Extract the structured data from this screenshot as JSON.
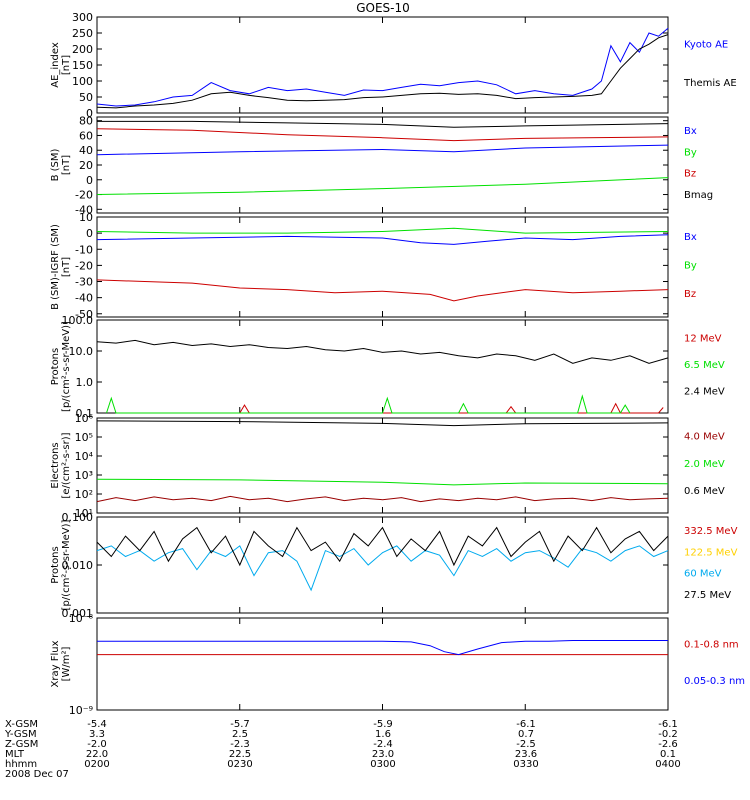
{
  "title": "GOES-10",
  "date_label": "2008 Dec 07",
  "orbit_table": {
    "row_labels": [
      "X-GSM",
      "Y-GSM",
      "Z-GSM",
      "MLT",
      "hhmm"
    ],
    "columns": [
      [
        "-5.4",
        "3.3",
        "-2.0",
        "22.0",
        "0200"
      ],
      [
        "-5.7",
        "2.5",
        "-2.3",
        "22.5",
        "0230"
      ],
      [
        "-5.9",
        "1.6",
        "-2.4",
        "23.0",
        "0300"
      ],
      [
        "-6.1",
        "0.7",
        "-2.5",
        "23.6",
        "0330"
      ],
      [
        "-6.1",
        "-0.2",
        "-2.6",
        "0.1",
        "0400"
      ]
    ]
  },
  "colors": {
    "black": "#000000",
    "blue": "#0000ff",
    "green": "#00e000",
    "red": "#cc0000",
    "darkred": "#990000",
    "yellow": "#ffd000",
    "cyan": "#00aaee"
  },
  "chart_data": [
    {
      "type": "line",
      "ylabel_lines": [
        "AE_index",
        "[nT]"
      ],
      "ylim": [
        0,
        300
      ],
      "yscale": "linear",
      "yticks": [
        0,
        50,
        100,
        150,
        200,
        250,
        300
      ],
      "xlim": [
        0,
        120
      ],
      "xtick_labels": [
        "0200",
        "0230",
        "0300",
        "0330",
        "0400"
      ],
      "series": [
        {
          "name": "Kyoto AE",
          "color": "#0000ff",
          "x": [
            0,
            4,
            8,
            12,
            16,
            20,
            24,
            28,
            32,
            36,
            40,
            44,
            48,
            52,
            56,
            60,
            64,
            68,
            72,
            76,
            80,
            84,
            88,
            92,
            96,
            100,
            104,
            106,
            108,
            110,
            112,
            114,
            116,
            118,
            120
          ],
          "y": [
            28,
            22,
            25,
            35,
            50,
            55,
            95,
            70,
            60,
            80,
            70,
            75,
            65,
            55,
            72,
            70,
            80,
            90,
            85,
            95,
            100,
            88,
            60,
            70,
            60,
            55,
            75,
            100,
            210,
            160,
            220,
            190,
            250,
            240,
            265
          ]
        },
        {
          "name": "Themis AE",
          "color": "#000000",
          "x": [
            0,
            4,
            8,
            12,
            16,
            20,
            24,
            28,
            32,
            36,
            40,
            44,
            48,
            52,
            56,
            60,
            64,
            68,
            72,
            76,
            80,
            84,
            88,
            92,
            96,
            100,
            104,
            106,
            108,
            110,
            112,
            114,
            116,
            118,
            120
          ],
          "y": [
            18,
            16,
            22,
            25,
            30,
            40,
            60,
            65,
            55,
            48,
            40,
            38,
            40,
            42,
            48,
            50,
            55,
            60,
            62,
            58,
            60,
            55,
            45,
            48,
            50,
            52,
            55,
            60,
            100,
            140,
            170,
            200,
            215,
            235,
            245
          ]
        }
      ]
    },
    {
      "type": "line",
      "ylabel_lines": [
        "B (SM)",
        "[nT]"
      ],
      "ylim": [
        -45,
        85
      ],
      "yscale": "linear",
      "yticks": [
        -40,
        -20,
        0,
        20,
        40,
        60,
        80
      ],
      "xlim": [
        0,
        120
      ],
      "series": [
        {
          "name": "Bx",
          "color": "#0000ff",
          "x": [
            0,
            30,
            60,
            75,
            90,
            120
          ],
          "y": [
            34,
            38,
            41,
            38,
            43,
            47
          ]
        },
        {
          "name": "By",
          "color": "#00e000",
          "x": [
            0,
            30,
            60,
            90,
            120
          ],
          "y": [
            -20,
            -17,
            -12,
            -6,
            3
          ]
        },
        {
          "name": "Bz",
          "color": "#cc0000",
          "x": [
            0,
            20,
            40,
            60,
            75,
            90,
            120
          ],
          "y": [
            69,
            67,
            61,
            57,
            53,
            56,
            58
          ]
        },
        {
          "name": "Bmag",
          "color": "#000000",
          "x": [
            0,
            20,
            40,
            60,
            75,
            90,
            120
          ],
          "y": [
            79,
            79,
            77,
            75,
            71,
            73,
            76
          ]
        }
      ]
    },
    {
      "type": "line",
      "ylabel_lines": [
        "B (SM)-IGRF (SM)",
        "[nT]"
      ],
      "ylim": [
        -52,
        10
      ],
      "yscale": "linear",
      "yticks": [
        -50,
        -40,
        -30,
        -20,
        -10,
        0,
        10
      ],
      "xlim": [
        0,
        120
      ],
      "series": [
        {
          "name": "Bx",
          "color": "#0000ff",
          "x": [
            0,
            20,
            40,
            60,
            68,
            75,
            82,
            90,
            100,
            110,
            120
          ],
          "y": [
            -4,
            -3,
            -2,
            -3,
            -6,
            -7,
            -5,
            -3,
            -4,
            -2,
            -1
          ]
        },
        {
          "name": "By",
          "color": "#00e000",
          "x": [
            0,
            20,
            40,
            60,
            75,
            90,
            120
          ],
          "y": [
            1,
            0,
            0,
            1,
            3,
            0,
            1
          ]
        },
        {
          "name": "Bz",
          "color": "#cc0000",
          "x": [
            0,
            10,
            20,
            30,
            40,
            50,
            60,
            70,
            75,
            80,
            90,
            100,
            110,
            120
          ],
          "y": [
            -29,
            -30,
            -31,
            -34,
            -35,
            -37,
            -36,
            -38,
            -42,
            -39,
            -35,
            -37,
            -36,
            -35
          ]
        }
      ]
    },
    {
      "type": "line",
      "ylabel_lines": [
        "Protons",
        "[p/(cm²-s-sr-MeV)]"
      ],
      "ylim": [
        0.1,
        100
      ],
      "yscale": "log",
      "yticks": [
        0.1,
        1.0,
        10.0,
        100.0
      ],
      "ytick_labels": [
        "0.1",
        "1.0",
        "10.0",
        "100.0"
      ],
      "xlim": [
        0,
        120
      ],
      "series": [
        {
          "name": "12 MeV",
          "color": "#cc0000",
          "x": [
            30,
            31,
            32,
            86,
            87,
            88,
            108,
            109,
            110,
            118,
            119
          ],
          "y": [
            0.1,
            0.18,
            0.1,
            0.1,
            0.16,
            0.1,
            0.1,
            0.2,
            0.1,
            0.1,
            0.15
          ]
        },
        {
          "name": "6.5 MeV",
          "color": "#00e000",
          "x": [
            2,
            3,
            4,
            60,
            61,
            62,
            76,
            77,
            78,
            101,
            102,
            103,
            110,
            111,
            112
          ],
          "y": [
            0.1,
            0.3,
            0.1,
            0.1,
            0.3,
            0.1,
            0.1,
            0.2,
            0.1,
            0.1,
            0.35,
            0.1,
            0.1,
            0.18,
            0.1
          ]
        },
        {
          "name": "2.4 MeV",
          "color": "#000000",
          "x": [
            0,
            4,
            8,
            12,
            16,
            20,
            24,
            28,
            32,
            36,
            40,
            44,
            48,
            52,
            56,
            60,
            64,
            68,
            72,
            76,
            80,
            84,
            88,
            92,
            96,
            100,
            104,
            108,
            112,
            116,
            120
          ],
          "y": [
            20,
            18,
            22,
            16,
            19,
            15,
            17,
            14,
            16,
            13,
            12,
            14,
            11,
            10,
            12,
            9,
            10,
            8,
            9,
            7,
            6,
            8,
            7,
            5,
            8,
            4,
            6,
            5,
            7,
            4,
            6
          ]
        }
      ]
    },
    {
      "type": "line",
      "ylabel_lines": [
        "Electrons",
        "[e/(cm²-s-sr)]"
      ],
      "ylim": [
        10,
        1000000
      ],
      "yscale": "log",
      "yticks": [
        10,
        100,
        1000,
        10000,
        100000,
        1000000
      ],
      "ytick_labels": [
        "10¹",
        "10²",
        "10³",
        "10⁴",
        "10⁵",
        "10⁶"
      ],
      "xlim": [
        0,
        120
      ],
      "series": [
        {
          "name": "4.0 MeV",
          "color": "#990000",
          "x": [
            0,
            4,
            8,
            12,
            16,
            20,
            24,
            28,
            32,
            36,
            40,
            44,
            48,
            52,
            56,
            60,
            64,
            68,
            72,
            76,
            80,
            84,
            88,
            92,
            96,
            100,
            104,
            108,
            112,
            116,
            120
          ],
          "y": [
            40,
            65,
            45,
            70,
            50,
            60,
            45,
            75,
            50,
            60,
            40,
            55,
            70,
            45,
            60,
            50,
            65,
            40,
            55,
            45,
            60,
            50,
            70,
            45,
            55,
            60,
            45,
            65,
            50,
            55,
            60
          ]
        },
        {
          "name": "2.0 MeV",
          "color": "#00e000",
          "x": [
            0,
            30,
            60,
            75,
            90,
            120
          ],
          "y": [
            600,
            550,
            420,
            300,
            380,
            350
          ]
        },
        {
          "name": "0.6 MeV",
          "color": "#000000",
          "x": [
            0,
            30,
            60,
            75,
            90,
            120
          ],
          "y": [
            700000,
            650000,
            520000,
            400000,
            500000,
            550000
          ]
        }
      ]
    },
    {
      "type": "line",
      "ylabel_lines": [
        "Protons",
        "[p/(cm²-s-sr-MeV)]"
      ],
      "ylim": [
        0.001,
        0.1
      ],
      "yscale": "log",
      "yticks": [
        0.001,
        0.01,
        0.1
      ],
      "ytick_labels": [
        "0.001",
        "0.010",
        "0.100"
      ],
      "xlim": [
        0,
        120
      ],
      "series": [
        {
          "name": "332.5 MeV",
          "color": "#cc0000",
          "x": [],
          "y": []
        },
        {
          "name": "122.5 MeV",
          "color": "#ffd000",
          "x": [],
          "y": []
        },
        {
          "name": "60 MeV",
          "color": "#00aaee",
          "x": [
            0,
            3,
            6,
            9,
            12,
            15,
            18,
            21,
            24,
            27,
            30,
            33,
            36,
            39,
            42,
            45,
            48,
            51,
            54,
            57,
            60,
            63,
            66,
            69,
            72,
            75,
            78,
            81,
            84,
            87,
            90,
            93,
            96,
            99,
            102,
            105,
            108,
            111,
            114,
            117,
            120
          ],
          "y": [
            0.02,
            0.025,
            0.015,
            0.02,
            0.012,
            0.018,
            0.022,
            0.008,
            0.02,
            0.015,
            0.025,
            0.006,
            0.018,
            0.02,
            0.012,
            0.003,
            0.02,
            0.015,
            0.022,
            0.01,
            0.018,
            0.025,
            0.012,
            0.02,
            0.016,
            0.006,
            0.02,
            0.015,
            0.022,
            0.012,
            0.018,
            0.02,
            0.014,
            0.009,
            0.022,
            0.018,
            0.012,
            0.02,
            0.025,
            0.015,
            0.02
          ]
        },
        {
          "name": "27.5 MeV",
          "color": "#000000",
          "x": [
            0,
            3,
            6,
            9,
            12,
            15,
            18,
            21,
            24,
            27,
            30,
            33,
            36,
            39,
            42,
            45,
            48,
            51,
            54,
            57,
            60,
            63,
            66,
            69,
            72,
            75,
            78,
            81,
            84,
            87,
            90,
            93,
            96,
            99,
            102,
            105,
            108,
            111,
            114,
            117,
            120
          ],
          "y": [
            0.03,
            0.015,
            0.04,
            0.02,
            0.05,
            0.012,
            0.035,
            0.06,
            0.018,
            0.04,
            0.01,
            0.05,
            0.025,
            0.015,
            0.06,
            0.02,
            0.03,
            0.012,
            0.045,
            0.025,
            0.06,
            0.015,
            0.035,
            0.02,
            0.05,
            0.01,
            0.04,
            0.025,
            0.06,
            0.015,
            0.03,
            0.05,
            0.012,
            0.04,
            0.02,
            0.06,
            0.018,
            0.035,
            0.05,
            0.02,
            0.04
          ]
        }
      ]
    },
    {
      "type": "line",
      "ylabel_lines": [
        "Xray Flux",
        "[W/m²]"
      ],
      "ylim": [
        1e-09,
        1e-08
      ],
      "yscale": "log",
      "yticks": [
        1e-09,
        1e-08
      ],
      "ytick_labels": [
        "10⁻⁹",
        "10⁻⁸"
      ],
      "xlim": [
        0,
        120
      ],
      "series": [
        {
          "name": "0.1-0.8 nm",
          "color": "#cc0000",
          "x": [
            0,
            120
          ],
          "y": [
            4e-09,
            4e-09
          ]
        },
        {
          "name": "0.05-0.3 nm",
          "color": "#0000ff",
          "x": [
            0,
            60,
            66,
            70,
            73,
            76,
            80,
            85,
            90,
            95,
            100,
            120
          ],
          "y": [
            5.6e-09,
            5.6e-09,
            5.5e-09,
            5e-09,
            4.3e-09,
            4e-09,
            4.6e-09,
            5.4e-09,
            5.6e-09,
            5.6e-09,
            5.7e-09,
            5.7e-09
          ]
        }
      ]
    }
  ]
}
